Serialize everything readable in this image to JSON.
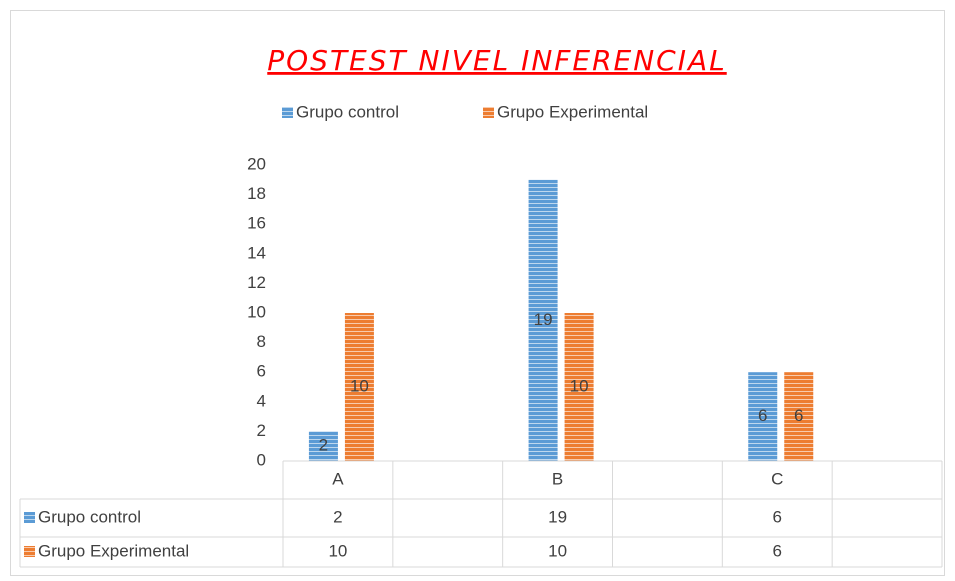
{
  "chart_data": {
    "type": "bar",
    "title": "POSTEST NIVEL INFERENCIAL",
    "categories": [
      "A",
      null,
      "B",
      null,
      "C",
      null
    ],
    "series": [
      {
        "name": "Grupo control",
        "color": "#5b9bd5",
        "values": [
          2,
          null,
          19,
          null,
          6,
          null
        ]
      },
      {
        "name": "Grupo Experimental",
        "color": "#ed7d31",
        "values": [
          10,
          null,
          10,
          null,
          6,
          null
        ]
      }
    ],
    "ylim": [
      0,
      20
    ],
    "yticks": [
      0,
      2,
      4,
      6,
      8,
      10,
      12,
      14,
      16,
      18,
      20
    ],
    "legend": "top",
    "grid": false,
    "data_table": true
  }
}
